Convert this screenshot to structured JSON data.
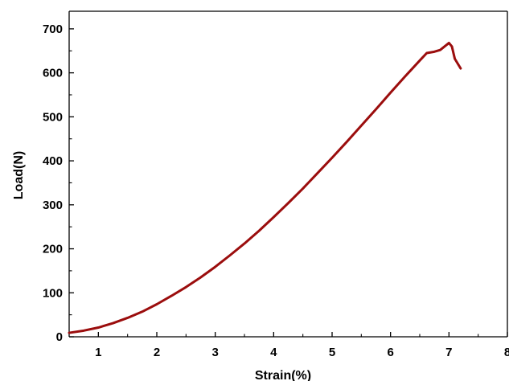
{
  "chart_data": {
    "type": "line",
    "title": "",
    "xlabel": "Strain(%)",
    "ylabel": "Load(N)",
    "xlim": [
      0.5,
      8
    ],
    "ylim": [
      0,
      740
    ],
    "x_ticks": [
      1,
      2,
      3,
      4,
      5,
      6,
      7,
      8
    ],
    "x_tick_labels": [
      "1",
      "2",
      "3",
      "4",
      "5",
      "6",
      "7",
      "8"
    ],
    "y_ticks": [
      0,
      100,
      200,
      300,
      400,
      500,
      600,
      700
    ],
    "y_tick_labels": [
      "0",
      "100",
      "200",
      "300",
      "400",
      "500",
      "600",
      "700"
    ],
    "grid": false,
    "legend": "none",
    "series": [
      {
        "color": "#9b0d0d",
        "x": [
          0.5,
          0.75,
          1.0,
          1.25,
          1.5,
          1.75,
          2.0,
          2.25,
          2.5,
          2.75,
          3.0,
          3.25,
          3.5,
          3.75,
          4.0,
          4.25,
          4.5,
          4.75,
          5.0,
          5.25,
          5.5,
          5.75,
          6.0,
          6.25,
          6.5,
          6.62,
          6.75,
          6.85,
          7.0,
          7.05,
          7.1,
          7.2
        ],
        "y": [
          9,
          14,
          21,
          31,
          43,
          57,
          74,
          93,
          113,
          135,
          159,
          185,
          212,
          241,
          272,
          304,
          337,
          372,
          407,
          443,
          480,
          517,
          555,
          592,
          628,
          645,
          648,
          652,
          668,
          660,
          632,
          610
        ]
      }
    ]
  }
}
